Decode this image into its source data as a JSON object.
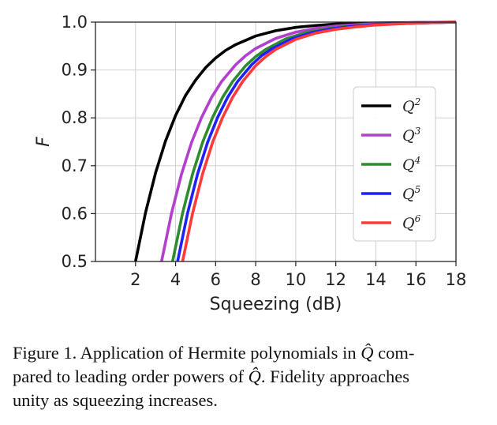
{
  "chart_data": {
    "type": "line",
    "title": "",
    "xlabel": "Squeezing (dB)",
    "ylabel": "F",
    "xlim": [
      0,
      18
    ],
    "ylim": [
      0.5,
      1.0
    ],
    "xticks": [
      2,
      4,
      6,
      8,
      10,
      12,
      14,
      16,
      18
    ],
    "xtick_labels": [
      "2",
      "4",
      "6",
      "8",
      "10",
      "12",
      "14",
      "16",
      "18"
    ],
    "yticks": [
      0.5,
      0.6,
      0.7,
      0.8,
      0.9,
      1.0
    ],
    "ytick_labels": [
      "0.5",
      "0.6",
      "0.7",
      "0.8",
      "0.9",
      "1.0"
    ],
    "grid": true,
    "legend_position": "center-right",
    "series": [
      {
        "name": "Q2",
        "label_base": "Q",
        "label_exp": "2",
        "color": "#000000",
        "x": [
          2.0,
          2.5,
          3,
          3.5,
          4,
          4.5,
          5,
          5.5,
          6,
          6.5,
          7,
          8,
          9,
          10,
          11,
          12,
          14,
          16,
          18
        ],
        "y": [
          0.5,
          0.602,
          0.685,
          0.752,
          0.805,
          0.847,
          0.879,
          0.905,
          0.925,
          0.941,
          0.953,
          0.971,
          0.982,
          0.989,
          0.993,
          0.996,
          0.998,
          0.999,
          1.0
        ]
      },
      {
        "name": "Q3",
        "label_base": "Q",
        "label_exp": "3",
        "color": "#b43fcf",
        "x": [
          3.3,
          3.8,
          4.3,
          4.8,
          5.3,
          5.8,
          6.3,
          7,
          7.5,
          8,
          9,
          10,
          11,
          12,
          14,
          16,
          18
        ],
        "y": [
          0.5,
          0.601,
          0.683,
          0.749,
          0.801,
          0.843,
          0.876,
          0.911,
          0.93,
          0.945,
          0.966,
          0.979,
          0.987,
          0.992,
          0.997,
          0.999,
          1.0
        ]
      },
      {
        "name": "Q4",
        "label_base": "Q",
        "label_exp": "4",
        "color": "#2e8b2e",
        "x": [
          3.85,
          4.35,
          4.85,
          5.35,
          5.85,
          6.35,
          6.85,
          7.5,
          8,
          8.5,
          9.5,
          10.5,
          11.5,
          12.5,
          14,
          16,
          18
        ],
        "y": [
          0.5,
          0.601,
          0.683,
          0.749,
          0.801,
          0.843,
          0.876,
          0.909,
          0.928,
          0.943,
          0.965,
          0.978,
          0.986,
          0.991,
          0.995,
          0.998,
          1.0
        ]
      },
      {
        "name": "Q5",
        "label_base": "Q",
        "label_exp": "5",
        "color": "#1f1fff",
        "x": [
          4.1,
          4.6,
          5.1,
          5.6,
          6.1,
          6.6,
          7.1,
          7.8,
          8.3,
          8.8,
          9.8,
          10.8,
          11.8,
          12.8,
          14,
          16,
          18
        ],
        "y": [
          0.5,
          0.601,
          0.683,
          0.749,
          0.801,
          0.843,
          0.876,
          0.911,
          0.93,
          0.944,
          0.965,
          0.978,
          0.986,
          0.991,
          0.995,
          0.998,
          1.0
        ]
      },
      {
        "name": "Q6",
        "label_base": "Q",
        "label_exp": "6",
        "color": "#ff3a3a",
        "x": [
          4.35,
          4.85,
          5.35,
          5.85,
          6.35,
          6.85,
          7.35,
          8,
          8.5,
          9,
          10,
          11,
          12,
          13,
          14,
          16,
          18
        ],
        "y": [
          0.5,
          0.601,
          0.683,
          0.749,
          0.801,
          0.843,
          0.876,
          0.909,
          0.928,
          0.943,
          0.964,
          0.977,
          0.985,
          0.99,
          0.994,
          0.998,
          1.0
        ]
      }
    ]
  },
  "caption": {
    "lines": [
      {
        "before": "Figure 1. Application of Hermite polynomials in ",
        "q": "Q̂",
        "after": " com-"
      },
      {
        "before": "pared to leading order powers of ",
        "q": "Q̂",
        "after": ". Fidelity approaches"
      },
      {
        "before": "unity as squeezing increases.",
        "q": "",
        "after": ""
      }
    ]
  }
}
